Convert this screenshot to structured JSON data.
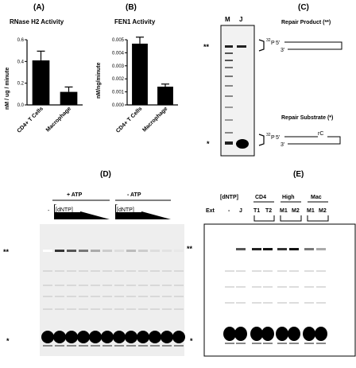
{
  "panels": {
    "A": {
      "letter": "(A)",
      "chart_data": {
        "type": "bar",
        "title": "RNase H2 Activity",
        "ylabel": "nM / ug / minute",
        "categories": [
          "CD4+ T Cells",
          "Macrophage"
        ],
        "values": [
          0.41,
          0.12
        ],
        "errors": [
          0.085,
          0.045
        ],
        "ylim": [
          0,
          0.6
        ],
        "yticks": [
          "0.0",
          "0.2",
          "0.4",
          "0.6"
        ],
        "grid": false,
        "bar_color": "#000000"
      }
    },
    "B": {
      "letter": "(B)",
      "chart_data": {
        "type": "bar",
        "title": "FEN1 Activity",
        "ylabel": "nM/ng/minute",
        "categories": [
          "CD4+ T Cells",
          "Macrophage"
        ],
        "values": [
          0.0047,
          0.0014
        ],
        "errors": [
          0.0005,
          0.0002
        ],
        "ylim": [
          0,
          0.005
        ],
        "yticks": [
          "0.000",
          "0.001",
          "0.002",
          "0.003",
          "0.004",
          "0.005"
        ],
        "grid": false,
        "bar_color": "#000000"
      }
    },
    "C": {
      "letter": "(C)",
      "lanes": [
        "M",
        "J"
      ],
      "marker_product": "**",
      "marker_substrate": "*",
      "product_label": "Repair Product (**)",
      "substrate_label": "Repair Substrate (*)",
      "p32": "32",
      "p_letter": "P",
      "five_prime": "5'",
      "three_prime": "3'",
      "rc": "rC"
    },
    "D": {
      "letter": "(D)",
      "plus_atp": "+ ATP",
      "minus_atp": "- ATP",
      "dash": "-",
      "dntp": "[dNTP]",
      "marker_product": "**",
      "marker_substrate": "*"
    },
    "E": {
      "letter": "(E)",
      "dntp": "[dNTP]",
      "groups": [
        "CD4",
        "High",
        "Mac"
      ],
      "ext": "Ext",
      "lanes": [
        "-",
        "J",
        "T1",
        "T2",
        "M1",
        "M2",
        "M1",
        "M2"
      ],
      "marker_product": "**",
      "marker_substrate": "*"
    }
  }
}
